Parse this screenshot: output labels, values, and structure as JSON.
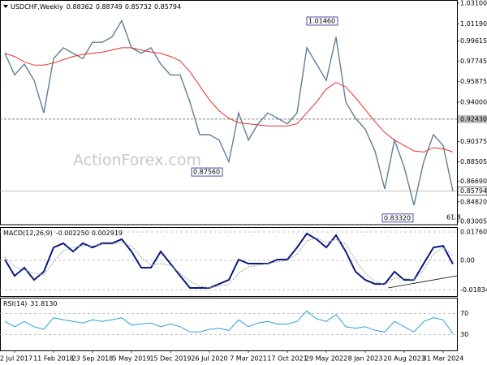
{
  "chart_data": [
    {
      "type": "line",
      "symbol": "USDCHF,Weekly",
      "ohlc": [
        0.88362,
        0.88749,
        0.85732,
        0.85794
      ],
      "watermark": "ActionForex.com",
      "categories": [
        null,
        "2 Jul 2017",
        null,
        null,
        null,
        "11 Feb 2018",
        null,
        null,
        null,
        "23 Sep 2018",
        null,
        null,
        null,
        "5 May 2019",
        null,
        null,
        null,
        "15 Dec 2019",
        null,
        null,
        null,
        "26 Jul 2020",
        null,
        null,
        null,
        "7 Mar 2021",
        null,
        null,
        null,
        "17 Oct 2021",
        null,
        null,
        null,
        "29 May 2022",
        null,
        null,
        null,
        "8 Jan 2023",
        null,
        null,
        null,
        "20 Aug 2023",
        null,
        null,
        null,
        "31 Mar 2024",
        null
      ],
      "ylim": [
        0.8271,
        1.034
      ],
      "yticks": [
        {
          "value": 1.031,
          "label": "1.03100"
        },
        {
          "value": 1.0119,
          "label": "1.01190"
        },
        0.99615,
        0.97745,
        0.95875,
        {
          "value": 0.94,
          "label": "0.94000"
        },
        0.90375,
        0.88505,
        {
          "value": 0.8669,
          "label": "0.86690"
        },
        {
          "value": 0.8482,
          "label": "0.84820"
        },
        0.83005
      ],
      "levels": [
        {
          "value": 0.9243,
          "label": "0.92430"
        }
      ],
      "annotations": [
        {
          "value": 1.0146,
          "label": "1.01460"
        },
        {
          "value": 0.8756,
          "label": "0.87560"
        },
        {
          "value": 0.8332,
          "label": "0.83320"
        }
      ],
      "fib": 61.8,
      "series": [
        {
          "color": "#5f7f95",
          "values": [
            0.985,
            0.965,
            0.975,
            0.96,
            0.93,
            0.98,
            0.99,
            0.985,
            0.98,
            0.995,
            0.995,
            1.0,
            1.015,
            0.99,
            0.985,
            0.99,
            0.975,
            0.965,
            0.965,
            0.94,
            0.91,
            0.91,
            0.905,
            0.885,
            0.93,
            0.905,
            0.92,
            0.93,
            0.925,
            0.92,
            0.93,
            0.99,
            0.975,
            0.96,
            1.0,
            0.94,
            0.925,
            0.915,
            0.895,
            0.86,
            0.905,
            0.88,
            0.845,
            0.885,
            0.91,
            0.9,
            0.85794
          ]
        },
        {
          "color": "#e8302a",
          "values": [
            0.985,
            0.982,
            0.977,
            0.974,
            0.974,
            0.976,
            0.979,
            0.982,
            0.984,
            0.985,
            0.986,
            0.988,
            0.99,
            0.99,
            0.988,
            0.986,
            0.985,
            0.982,
            0.978,
            0.968,
            0.955,
            0.942,
            0.932,
            0.925,
            0.921,
            0.92,
            0.919,
            0.918,
            0.918,
            0.918,
            0.92,
            0.93,
            0.94,
            0.952,
            0.958,
            0.954,
            0.944,
            0.933,
            0.922,
            0.912,
            0.905,
            0.9,
            0.895,
            0.894,
            0.898,
            0.897,
            0.894
          ]
        }
      ]
    },
    {
      "type": "line",
      "title": "MACD(12,26,9)",
      "readout": [
        {
          "value": -0.00225,
          "label": "-0.002250"
        },
        0.002919
      ],
      "ylim": [
        -0.0221,
        0.0206
      ],
      "yticks": [
        0.017603,
        {
          "value": 0,
          "label": "0.00"
        },
        -0.01834
      ],
      "series": [
        {
          "color": "#0a1a7a",
          "values": [
            0.0005,
            -0.0096,
            -0.0045,
            -0.0121,
            -0.007,
            0.008,
            0.0106,
            0.0055,
            0.0106,
            0.008,
            0.0106,
            0.0106,
            0.0131,
            0.0055,
            -0.0045,
            -0.0045,
            0.0055,
            -0.002,
            -0.0096,
            -0.0171,
            -0.0171,
            -0.0171,
            -0.0146,
            -0.0121,
            0.0005,
            -0.002,
            -0.002,
            -0.002,
            0.0005,
            0.0005,
            0.008,
            0.0166,
            0.0131,
            0.008,
            0.0156,
            0.0055,
            -0.007,
            -0.0121,
            -0.0146,
            -0.0146,
            -0.007,
            -0.0121,
            -0.0121,
            -0.002,
            0.008,
            0.009,
            -0.00225
          ]
        },
        {
          "color": "#a0a0a0",
          "values": [
            0.002,
            -0.004,
            -0.006,
            -0.008,
            -0.009,
            -0.001,
            0.006,
            0.008,
            0.009,
            0.009,
            0.01,
            0.01,
            0.011,
            0.009,
            0.002,
            -0.003,
            -0.002,
            -0.003,
            -0.008,
            -0.013,
            -0.016,
            -0.017,
            -0.016,
            -0.015,
            -0.008,
            -0.004,
            -0.003,
            -0.002,
            -0.001,
            0,
            0.004,
            0.012,
            0.014,
            0.011,
            0.013,
            0.01,
            0,
            -0.008,
            -0.013,
            -0.015,
            -0.011,
            -0.011,
            -0.012,
            -0.006,
            0.004,
            0.008,
            0.002919
          ]
        }
      ]
    },
    {
      "type": "line",
      "title": "RSI(14)",
      "readout": {
        "value": 31.813,
        "label": "31.8130"
      },
      "ylim": [
        0,
        100
      ],
      "yticks": [
        70,
        30
      ],
      "series": [
        {
          "color": "#2aa0e0",
          "values": [
            55,
            45,
            55,
            45,
            40,
            62,
            58,
            55,
            52,
            58,
            55,
            58,
            62,
            48,
            50,
            52,
            45,
            50,
            45,
            35,
            35,
            40,
            42,
            38,
            58,
            45,
            52,
            55,
            50,
            50,
            55,
            75,
            60,
            55,
            68,
            45,
            42,
            45,
            38,
            35,
            55,
            45,
            35,
            55,
            62,
            58,
            31.813
          ]
        }
      ]
    }
  ]
}
